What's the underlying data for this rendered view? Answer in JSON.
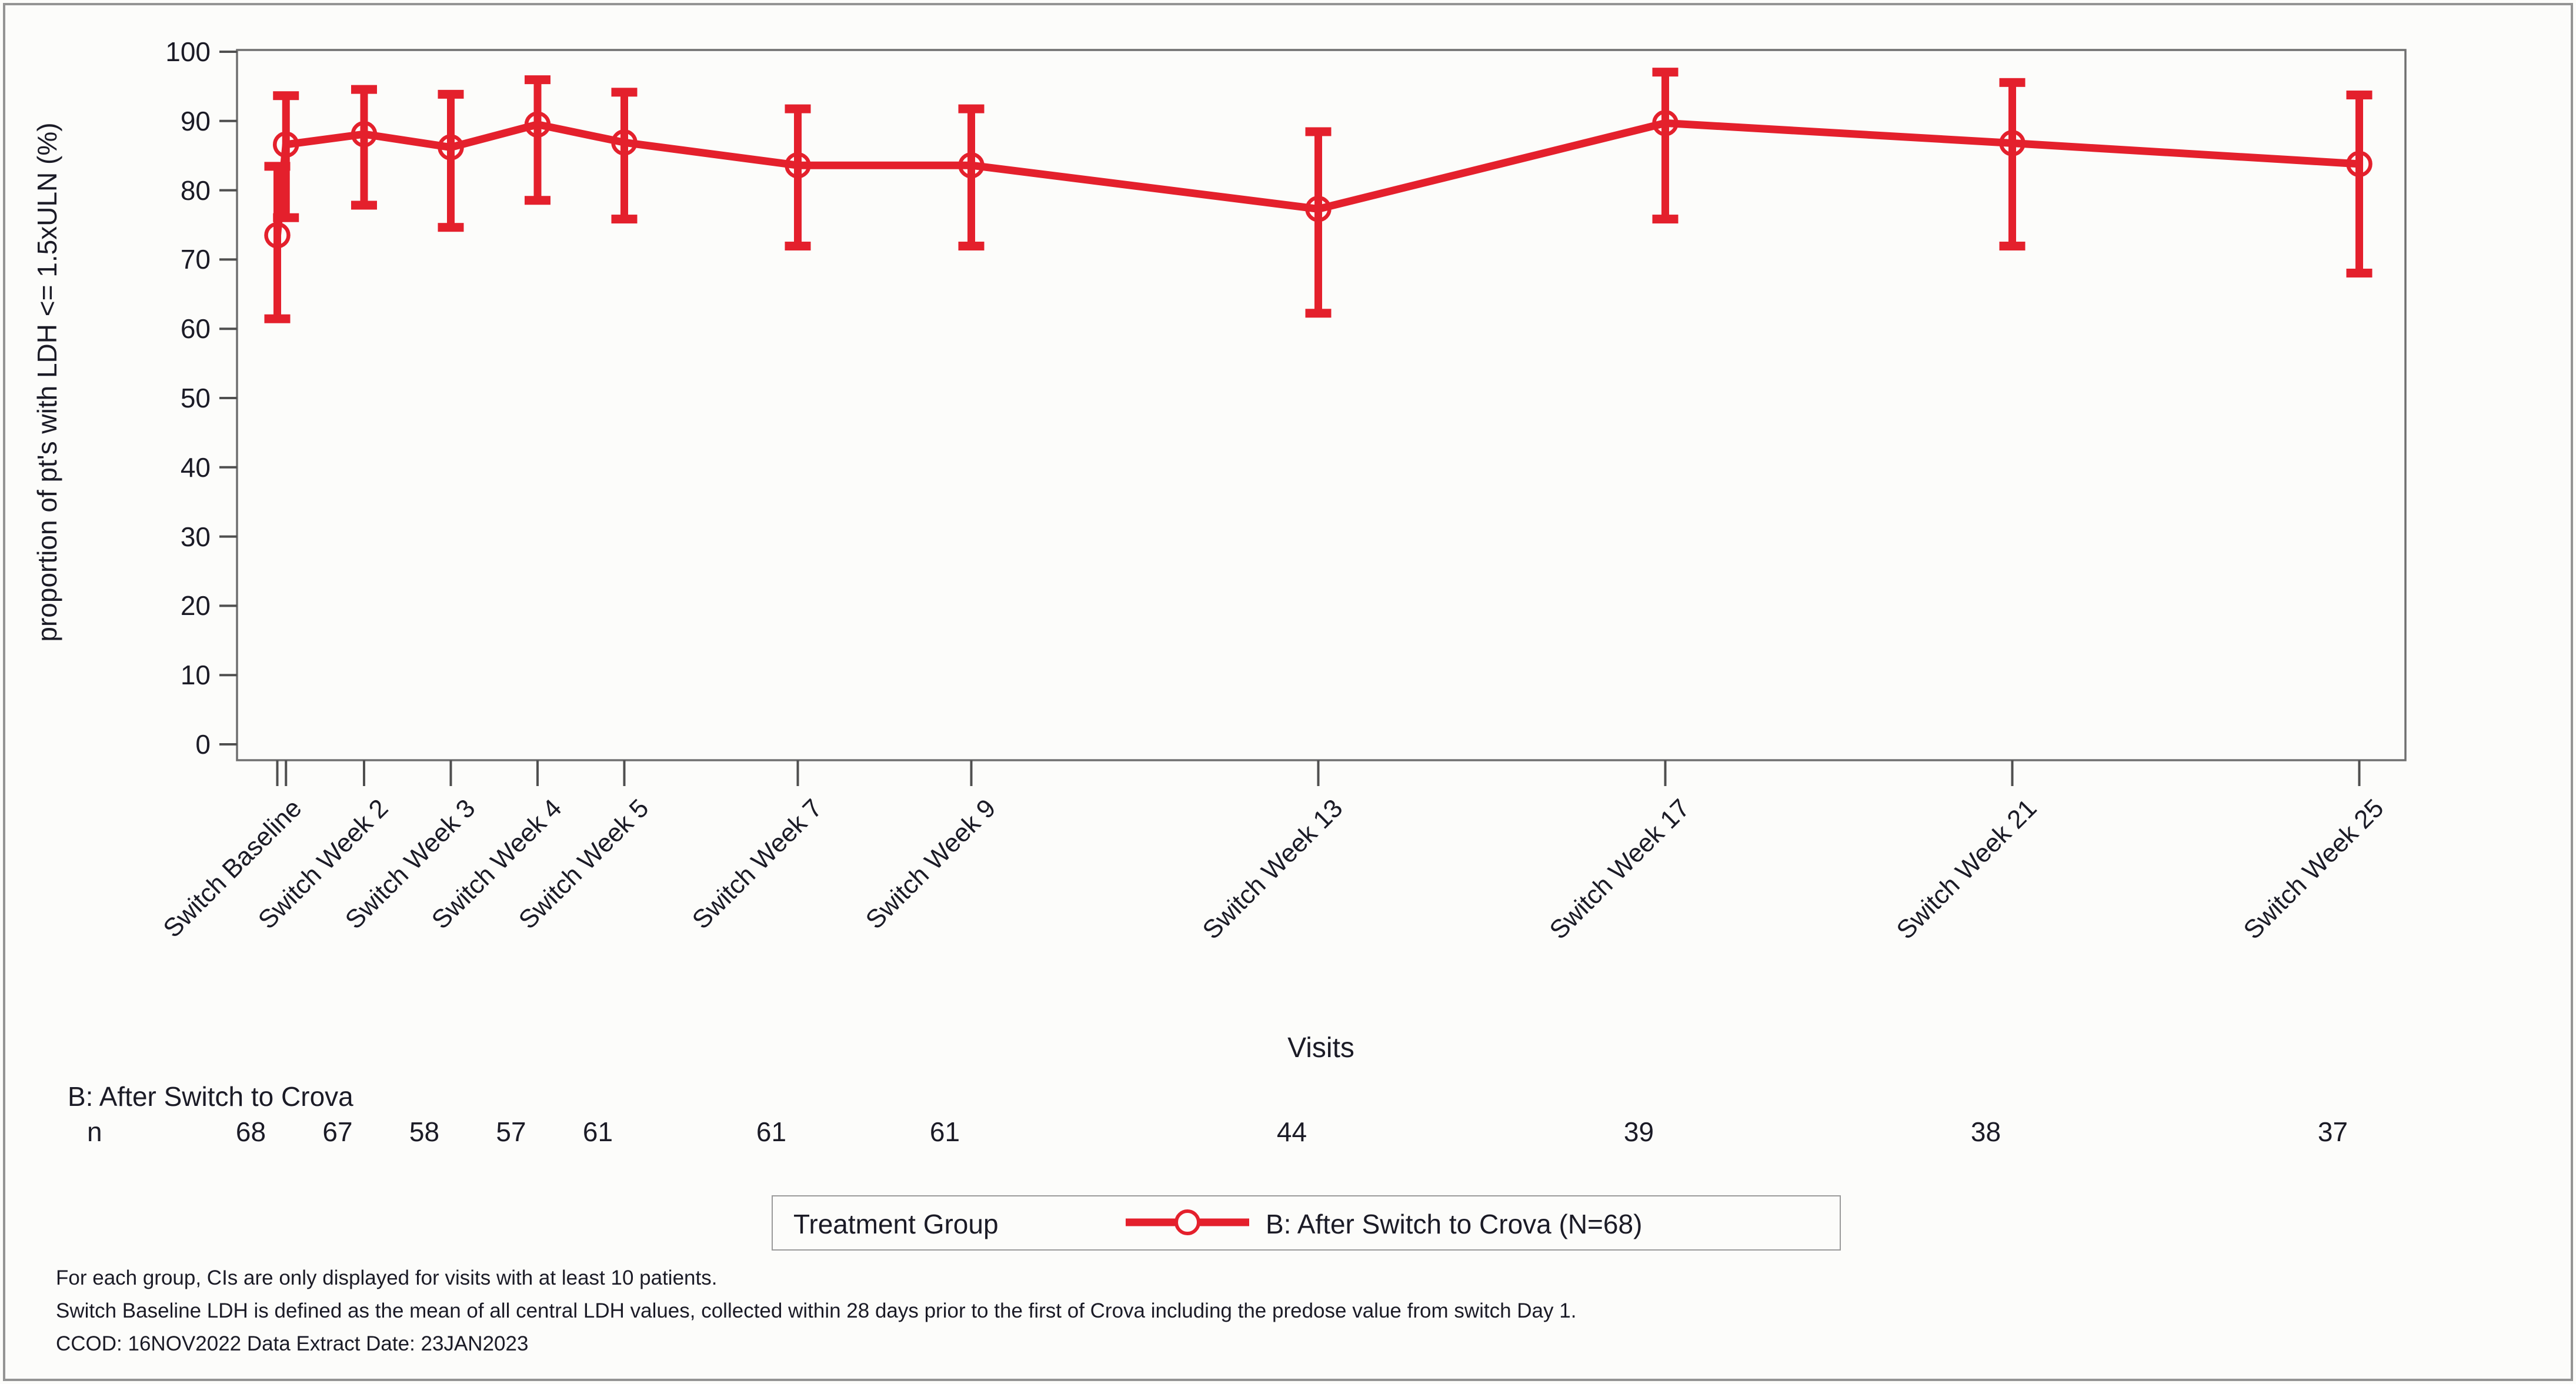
{
  "chart_data": {
    "type": "line",
    "title": "",
    "xlabel": "Visits",
    "ylabel": "proportion of pt's with LDH <= 1.5xULN (%)",
    "ylim": [
      0,
      100
    ],
    "yticks": [
      0,
      10,
      20,
      30,
      40,
      50,
      60,
      70,
      80,
      90,
      100
    ],
    "x_axis_unit": "weeks since switch",
    "grid": "off",
    "legend_position": "bottom",
    "error_bars": "95% CI, displayed only for visits with at least 10 patients",
    "series": [
      {
        "name": "B: After Switch to Crova (N=68)",
        "marker": "open-circle",
        "points": [
          {
            "visit": "Switch Baseline",
            "x_week": 1.0,
            "pct": 73.5,
            "ci_low": 61.4,
            "ci_high": 83.5,
            "n": 68,
            "labeled": true
          },
          {
            "visit": "",
            "x_week": 1.1,
            "pct": 86.6,
            "ci_low": 76.0,
            "ci_high": 93.7,
            "labeled": false
          },
          {
            "visit": "Switch Week 2",
            "x_week": 2,
            "pct": 88.1,
            "ci_low": 77.8,
            "ci_high": 94.6,
            "n": 67,
            "labeled": true
          },
          {
            "visit": "Switch Week 3",
            "x_week": 3,
            "pct": 86.2,
            "ci_low": 74.6,
            "ci_high": 93.9,
            "n": 58,
            "labeled": true
          },
          {
            "visit": "Switch Week 4",
            "x_week": 4,
            "pct": 89.5,
            "ci_low": 78.5,
            "ci_high": 96.0,
            "n": 57,
            "labeled": true
          },
          {
            "visit": "Switch Week 5",
            "x_week": 5,
            "pct": 86.9,
            "ci_low": 75.8,
            "ci_high": 94.2,
            "n": 61,
            "labeled": true
          },
          {
            "visit": "Switch Week 7",
            "x_week": 7,
            "pct": 83.6,
            "ci_low": 71.9,
            "ci_high": 91.8,
            "n": 61,
            "labeled": true
          },
          {
            "visit": "Switch Week 9",
            "x_week": 9,
            "pct": 83.6,
            "ci_low": 71.9,
            "ci_high": 91.8,
            "n": 61,
            "labeled": true
          },
          {
            "visit": "Switch Week 13",
            "x_week": 13,
            "pct": 77.3,
            "ci_low": 62.2,
            "ci_high": 88.5,
            "n": 44,
            "labeled": true
          },
          {
            "visit": "Switch Week 17",
            "x_week": 17,
            "pct": 89.7,
            "ci_low": 75.8,
            "ci_high": 97.1,
            "n": 39,
            "labeled": true
          },
          {
            "visit": "Switch Week 21",
            "x_week": 21,
            "pct": 86.8,
            "ci_low": 71.9,
            "ci_high": 95.6,
            "n": 38,
            "labeled": true
          },
          {
            "visit": "Switch Week 25",
            "x_week": 25,
            "pct": 83.8,
            "ci_low": 68.0,
            "ci_high": 93.8,
            "n": 37,
            "labeled": true
          }
        ]
      }
    ]
  },
  "n_row": {
    "group_label": "B: After Switch to Crova",
    "row_label": "n"
  },
  "legend": {
    "title": "Treatment Group",
    "series_label": "B: After Switch to Crova (N=68)"
  },
  "notes": [
    "For each group, CIs are only displayed for visits with at least 10 patients.",
    "Switch Baseline LDH is defined as the mean of all central LDH values, collected within 28 days prior to the first of Crova including the predose value from switch Day 1.",
    "CCOD: 16NOV2022 Data Extract Date: 23JAN2023"
  ],
  "colors": {
    "series": "#e4202c",
    "text": "#1b1b26",
    "frame": "#6f6f6f",
    "tick": "#4f4f4f",
    "legend_border": "#9a9a9a"
  }
}
